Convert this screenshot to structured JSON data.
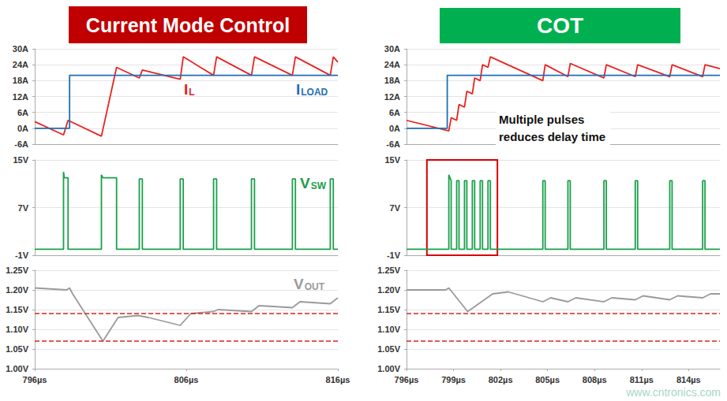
{
  "banners": [
    {
      "text": "Current Mode Control",
      "color": "#c00000"
    },
    {
      "text": "COT",
      "color": "#00b050"
    }
  ],
  "watermark": "www.cntronics.com",
  "chart_data": [
    {
      "type": "line",
      "xlim": [
        796,
        816
      ],
      "ylim": [
        -6,
        30
      ],
      "yticks": [
        {
          "value": -6,
          "label": "-6A"
        },
        {
          "value": 0,
          "label": "0A"
        },
        {
          "value": 6,
          "label": "6A"
        },
        {
          "value": 12,
          "label": "12A"
        },
        {
          "value": 18,
          "label": "18A"
        },
        {
          "value": 24,
          "label": "24A"
        },
        {
          "value": 30,
          "label": "30A"
        }
      ],
      "grid": true,
      "tick_labels": "y",
      "series": [
        {
          "name": "IL",
          "color": "#e8231f",
          "x": [
            796,
            797.9,
            798.2,
            800.4,
            801.4,
            802.9,
            803.1,
            805.6,
            805.8,
            807.8,
            808.0,
            810.3,
            810.5,
            813.0,
            813.2,
            815.5,
            815.7,
            816
          ],
          "values": [
            2.5,
            -2.5,
            3,
            -3,
            23,
            19,
            22,
            18.5,
            27,
            20,
            27,
            20,
            27,
            20,
            27,
            20,
            27,
            25
          ]
        },
        {
          "name": "ILOAD",
          "color": "#1f6fb5",
          "x": [
            796,
            798.3,
            798.3,
            816
          ],
          "values": [
            0,
            0,
            20,
            20
          ]
        }
      ]
    },
    {
      "type": "line",
      "xlim": [
        796,
        816
      ],
      "ylim": [
        -1,
        15
      ],
      "yticks": [
        {
          "value": -1,
          "label": "-1V"
        },
        {
          "value": 7,
          "label": "7V"
        },
        {
          "value": 15,
          "label": "15V"
        }
      ],
      "grid": true,
      "tick_labels": "y",
      "series": [
        {
          "name": "VSW",
          "color": "#1aa04a",
          "x": [
            796,
            797.9,
            797.9,
            797.95,
            798.2,
            798.2,
            800.4,
            800.4,
            800.5,
            801.4,
            801.4,
            802.9,
            802.9,
            803.1,
            803.1,
            805.6,
            805.6,
            805.8,
            805.8,
            807.8,
            807.8,
            808.0,
            808.0,
            810.3,
            810.3,
            810.5,
            810.5,
            813.0,
            813.0,
            813.2,
            813.2,
            815.5,
            815.5,
            815.7,
            815.7,
            816
          ],
          "values": [
            0,
            0,
            13,
            12,
            12,
            0,
            0,
            12.5,
            12,
            12,
            0,
            0,
            11.8,
            11.8,
            0,
            0,
            11.8,
            11.8,
            0,
            0,
            11.8,
            11.8,
            0,
            0,
            11.8,
            11.8,
            0,
            0,
            11.8,
            11.8,
            0,
            0,
            11.8,
            11.8,
            0,
            0
          ]
        }
      ]
    },
    {
      "type": "line",
      "xlim": [
        796,
        816
      ],
      "xticks": [
        {
          "value": 796,
          "label": "796µs"
        },
        {
          "value": 806,
          "label": "806µs"
        },
        {
          "value": 816,
          "label": "816µs"
        }
      ],
      "ylim": [
        1.0,
        1.25
      ],
      "yticks": [
        {
          "value": 1.0,
          "label": "1.00V"
        },
        {
          "value": 1.05,
          "label": "1.05V"
        },
        {
          "value": 1.1,
          "label": "1.10V"
        },
        {
          "value": 1.15,
          "label": "1.15V"
        },
        {
          "value": 1.2,
          "label": "1.20V"
        },
        {
          "value": 1.25,
          "label": "1.25V"
        }
      ],
      "grid": true,
      "reference_lines": {
        "values": [
          1.14,
          1.07
        ],
        "color": "#e0201e",
        "line_style": "dashed"
      },
      "series": [
        {
          "name": "VOUT",
          "color": "#9a9a9a",
          "x": [
            796,
            798.1,
            798.3,
            798.5,
            800.5,
            801.5,
            802.8,
            803.5,
            805.6,
            806.3,
            807.8,
            808.1,
            810.3,
            810.8,
            813.0,
            813.5,
            815.5,
            816
          ],
          "values": [
            1.205,
            1.2,
            1.205,
            1.19,
            1.07,
            1.13,
            1.135,
            1.13,
            1.11,
            1.14,
            1.145,
            1.15,
            1.145,
            1.16,
            1.155,
            1.17,
            1.165,
            1.18
          ]
        }
      ]
    },
    {
      "type": "line",
      "xlim": [
        796,
        816
      ],
      "ylim": [
        -6,
        30
      ],
      "yticks": [
        {
          "value": -6,
          "label": "-6A"
        },
        {
          "value": 0,
          "label": "0A"
        },
        {
          "value": 6,
          "label": "6A"
        },
        {
          "value": 12,
          "label": "12A"
        },
        {
          "value": 18,
          "label": "18A"
        },
        {
          "value": 24,
          "label": "24A"
        },
        {
          "value": 30,
          "label": "30A"
        }
      ],
      "grid": true,
      "tick_labels": "y",
      "annotations": [
        "Multiple pulses\nreduces delay time"
      ],
      "series": [
        {
          "color": "#e8231f",
          "x": [
            796,
            798.7,
            798.85,
            799.2,
            799.35,
            799.7,
            799.85,
            800.2,
            800.35,
            800.7,
            800.85,
            801.2,
            801.35,
            804.7,
            804.85,
            806.3,
            806.45,
            808.6,
            808.75,
            810.6,
            810.75,
            812.8,
            812.95,
            814.9,
            815.05,
            816
          ],
          "values": [
            3,
            -1,
            4,
            3,
            9,
            8,
            14,
            13,
            19,
            18,
            24,
            23,
            27,
            18,
            24,
            19.5,
            24.5,
            19,
            24,
            19.5,
            24,
            19.5,
            24,
            19.5,
            24,
            22.5
          ]
        },
        {
          "color": "#1f6fb5",
          "x": [
            796,
            798.6,
            798.6,
            816
          ],
          "values": [
            0,
            0,
            20,
            20
          ]
        }
      ]
    },
    {
      "type": "line",
      "xlim": [
        796,
        816
      ],
      "ylim": [
        -1,
        15
      ],
      "yticks": [
        {
          "value": -1,
          "label": "-1V"
        },
        {
          "value": 7,
          "label": "7V"
        },
        {
          "value": 15,
          "label": "15V"
        }
      ],
      "grid": true,
      "tick_labels": "y",
      "highlight": {
        "x": [
          797.3,
          801.8
        ],
        "color": "#d40000"
      },
      "series": [
        {
          "color": "#1aa04a",
          "x": [
            796,
            798.7,
            798.7,
            798.85,
            798.85,
            799.2,
            799.2,
            799.35,
            799.35,
            799.7,
            799.7,
            799.85,
            799.85,
            800.2,
            800.2,
            800.35,
            800.35,
            800.7,
            800.7,
            800.85,
            800.85,
            801.2,
            801.2,
            801.35,
            801.35,
            804.7,
            804.7,
            804.85,
            804.85,
            806.3,
            806.3,
            806.45,
            806.45,
            808.6,
            808.6,
            808.75,
            808.75,
            810.6,
            810.6,
            810.75,
            810.75,
            812.8,
            812.8,
            812.95,
            812.95,
            814.9,
            814.9,
            815.05,
            815.05,
            816
          ],
          "values": [
            0,
            0,
            12.5,
            11.5,
            0,
            0,
            11.5,
            11.5,
            0,
            0,
            11.5,
            11.5,
            0,
            0,
            11.5,
            11.5,
            0,
            0,
            11.5,
            11.5,
            0,
            0,
            11.5,
            11.5,
            0,
            0,
            11.5,
            11.5,
            0,
            0,
            11.5,
            11.5,
            0,
            0,
            11.5,
            11.5,
            0,
            0,
            11.5,
            11.5,
            0,
            0,
            11.5,
            11.5,
            0,
            0,
            11.5,
            11.5,
            0,
            0
          ]
        }
      ]
    },
    {
      "type": "line",
      "xlim": [
        796,
        816
      ],
      "xticks": [
        {
          "value": 796,
          "label": "796µs"
        },
        {
          "value": 799,
          "label": "799µs"
        },
        {
          "value": 802,
          "label": "802µs"
        },
        {
          "value": 805,
          "label": "805µs"
        },
        {
          "value": 808,
          "label": "808µs"
        },
        {
          "value": 811,
          "label": "811µs"
        },
        {
          "value": 814,
          "label": "814µs"
        }
      ],
      "ylim": [
        1.0,
        1.25
      ],
      "yticks": [
        {
          "value": 1.0,
          "label": "1.00V"
        },
        {
          "value": 1.05,
          "label": "1.05V"
        },
        {
          "value": 1.1,
          "label": "1.10V"
        },
        {
          "value": 1.15,
          "label": "1.15V"
        },
        {
          "value": 1.2,
          "label": "1.20V"
        },
        {
          "value": 1.25,
          "label": "1.25V"
        }
      ],
      "grid": true,
      "reference_lines": {
        "values": [
          1.14,
          1.07
        ],
        "color": "#e0201e",
        "line_style": "dashed"
      },
      "series": [
        {
          "color": "#9a9a9a",
          "x": [
            796,
            798.5,
            798.7,
            799.9,
            801.5,
            802.5,
            804.7,
            805.2,
            806.3,
            806.8,
            808.6,
            809.1,
            810.6,
            811.1,
            812.8,
            813.3,
            814.9,
            815.4,
            816
          ],
          "values": [
            1.2,
            1.2,
            1.205,
            1.145,
            1.19,
            1.195,
            1.17,
            1.18,
            1.17,
            1.18,
            1.17,
            1.18,
            1.175,
            1.185,
            1.175,
            1.185,
            1.18,
            1.19,
            1.19
          ]
        }
      ]
    }
  ]
}
